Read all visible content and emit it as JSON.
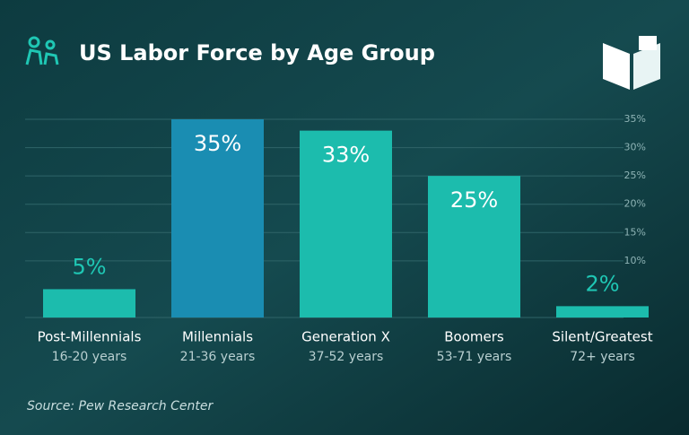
{
  "chart_data": {
    "type": "bar",
    "title": "US Labor Force by Age Group",
    "source": "Source: Pew Research Center",
    "categories": [
      "Post-Millennials",
      "Millennials",
      "Generation X",
      "Boomers",
      "Silent/Greatest"
    ],
    "category_details": [
      "16-20 years",
      "21-36 years",
      "37-52 years",
      "53-71 years",
      "72+ years"
    ],
    "values": [
      5,
      35,
      33,
      25,
      2
    ],
    "value_labels": [
      "5%",
      "35%",
      "33%",
      "25%",
      "2%"
    ],
    "colors": [
      "#1cbcad",
      "#1a8db2",
      "#1cbcad",
      "#1cbcad",
      "#1cbcad"
    ],
    "ylim": [
      0,
      35
    ],
    "yticks": [
      {
        "value": 10,
        "label": "10%"
      },
      {
        "value": 15,
        "label": "15%"
      },
      {
        "value": 20,
        "label": "20%"
      },
      {
        "value": 25,
        "label": "25%"
      },
      {
        "value": 30,
        "label": "30%"
      },
      {
        "value": 35,
        "label": "35%"
      }
    ],
    "grid": true
  }
}
